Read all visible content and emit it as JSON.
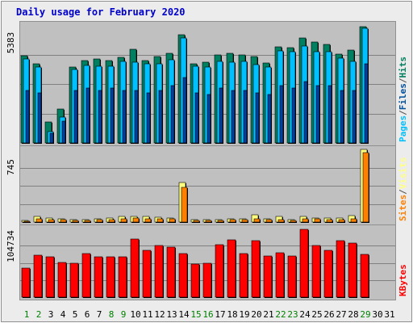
{
  "chart_data": {
    "type": "bar",
    "title": "Daily usage for February 2020",
    "days": [
      "1",
      "2",
      "3",
      "4",
      "5",
      "6",
      "7",
      "8",
      "9",
      "10",
      "11",
      "12",
      "13",
      "14",
      "15",
      "16",
      "17",
      "18",
      "19",
      "20",
      "21",
      "22",
      "23",
      "24",
      "25",
      "26",
      "27",
      "28",
      "29",
      "30",
      "31"
    ],
    "weekend_days": [
      "1",
      "2",
      "8",
      "9",
      "15",
      "16",
      "22",
      "23",
      "29"
    ],
    "colors": {
      "title": "#0000cc",
      "background": "#c0c0c0",
      "frame": "#ececec",
      "weekend_label": "#008000",
      "weekday_label": "#000000",
      "hits": "#008060",
      "files": "#00c0ff",
      "pages": "#0040a0",
      "visits": "#ffff80",
      "sites": "#ff8000",
      "kbytes": "#ff0000"
    },
    "panels": [
      {
        "name": "hits-files-pages",
        "max_label": "5383",
        "ymax": 5383,
        "legend": [
          "Pages",
          "/",
          "Files",
          "/",
          "Hits"
        ],
        "legend_colors": [
          "#00c0ff",
          "#505050",
          "#0050a0",
          "#505050",
          "#008060"
        ],
        "series": [
          {
            "name": "Hits",
            "values": [
              3980,
              3620,
              970,
              1560,
              3460,
              3760,
              3820,
              3760,
              3910,
              4290,
              3760,
              3960,
              4090,
              4930,
              3600,
              3670,
              4030,
              4090,
              4030,
              3930,
              3640,
              4400,
              4350,
              4800,
              4610,
              4500,
              4070,
              4250,
              5320,
              null,
              null
            ]
          },
          {
            "name": "Files",
            "values": [
              3850,
              3470,
              520,
              1170,
              3370,
              3540,
              3510,
              3520,
              3720,
              3690,
              3610,
              3600,
              3810,
              4790,
              3520,
              3480,
              3720,
              3700,
              3720,
              3560,
              3470,
              4220,
              4180,
              4430,
              4180,
              4170,
              3860,
              3740,
              5250,
              null,
              null
            ]
          },
          {
            "name": "Pages",
            "values": [
              2400,
              2300,
              440,
              1000,
              2400,
              2500,
              2400,
              2500,
              2400,
              2400,
              2300,
              2400,
              2600,
              3000,
              2300,
              2200,
              2500,
              2400,
              2400,
              2300,
              2200,
              2600,
              2500,
              2800,
              2600,
              2600,
              2400,
              2400,
              3600,
              null,
              null
            ]
          }
        ]
      },
      {
        "name": "visits-sites",
        "max_label": "745",
        "ymax": 745,
        "legend": [
          "Sites",
          "/",
          "Visits"
        ],
        "legend_colors": [
          "#ff8000",
          "#505050",
          "#ffff80"
        ],
        "series": [
          {
            "name": "Visits",
            "values": [
              20,
              55,
              38,
              32,
              22,
              28,
              35,
              40,
              60,
              62,
              55,
              48,
              45,
              405,
              25,
              28,
              28,
              30,
              35,
              75,
              32,
              55,
              25,
              55,
              45,
              38,
              40,
              70,
              745,
              null,
              null
            ]
          },
          {
            "name": "Sites",
            "values": [
              12,
              30,
              28,
              22,
              15,
              18,
              22,
              22,
              30,
              38,
              32,
              30,
              30,
              360,
              15,
              18,
              18,
              22,
              22,
              35,
              22,
              25,
              18,
              30,
              30,
              22,
              28,
              35,
              715,
              null,
              null
            ]
          }
        ]
      },
      {
        "name": "kbytes",
        "max_label": "104734",
        "ymax": 104734,
        "legend": [
          "KBytes"
        ],
        "legend_colors": [
          "#ff0000"
        ],
        "series": [
          {
            "name": "KBytes",
            "values": [
              44000,
              64000,
              61000,
              53000,
              52000,
              66000,
              61000,
              62000,
              61000,
              89000,
              72000,
              79000,
              77000,
              66000,
              51000,
              52000,
              80000,
              87000,
              67000,
              86000,
              63000,
              68000,
              63000,
              103000,
              79000,
              72000,
              86000,
              83000,
              65000,
              null,
              null
            ]
          }
        ]
      }
    ]
  }
}
